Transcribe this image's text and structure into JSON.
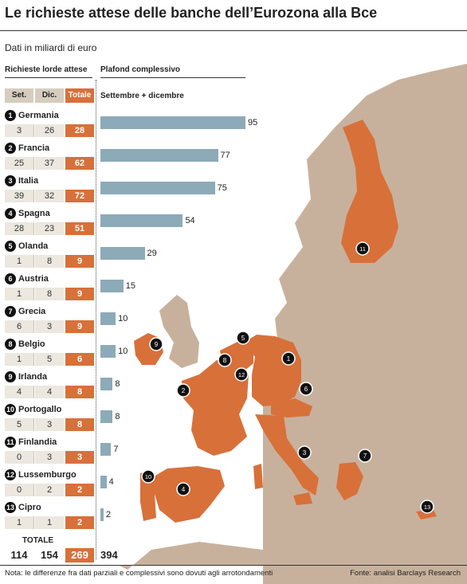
{
  "title": "Le richieste attese delle banche dell’Eurozona alla Bce",
  "subtitle": "Dati in miliardi di euro",
  "headers": {
    "left": "Richieste lorde attese",
    "right": "Plafond complessivo",
    "right_sub": "Settembre + dicembre",
    "col_set": "Set.",
    "col_dic": "Dic.",
    "col_tot": "Totale"
  },
  "colors": {
    "total_fill": "#d8703a",
    "bar_fill": "#8daab8",
    "eurozone": "#d8703a",
    "other_land": "#c8b19c",
    "sea": "#ffffff"
  },
  "chart_data": {
    "type": "bar",
    "title": "Le richieste attese delle banche dell’Eurozona alla Bce",
    "subtitle": "Dati in miliardi di euro",
    "categories": [
      "Germania",
      "Francia",
      "Italia",
      "Spagna",
      "Olanda",
      "Austria",
      "Grecia",
      "Belgio",
      "Irlanda",
      "Portogallo",
      "Finlandia",
      "Lussemburgo",
      "Cipro"
    ],
    "ranks": [
      "1",
      "2",
      "3",
      "4",
      "5",
      "6",
      "7",
      "8",
      "9",
      "10",
      "11",
      "12",
      "13"
    ],
    "series": [
      {
        "name": "Set.",
        "values": [
          3,
          25,
          39,
          28,
          1,
          1,
          6,
          1,
          4,
          5,
          0,
          0,
          1
        ]
      },
      {
        "name": "Dic.",
        "values": [
          26,
          37,
          32,
          23,
          8,
          8,
          3,
          5,
          4,
          3,
          3,
          2,
          1
        ]
      },
      {
        "name": "Totale",
        "values": [
          28,
          62,
          72,
          51,
          9,
          9,
          9,
          6,
          8,
          8,
          3,
          2,
          2
        ]
      },
      {
        "name": "Settembre + dicembre",
        "values": [
          95,
          77,
          75,
          54,
          29,
          15,
          10,
          10,
          8,
          8,
          7,
          4,
          2
        ]
      }
    ],
    "totals": {
      "label": "TOTALE",
      "set": "114",
      "dic": "154",
      "totale": "269",
      "plafond": "394"
    },
    "xlim": [
      0,
      95
    ]
  },
  "map_pins": [
    "1",
    "2",
    "3",
    "4",
    "5",
    "6",
    "7",
    "8",
    "9",
    "10",
    "11",
    "12",
    "13"
  ],
  "footer": {
    "note": "Nota: le differenze fra dati parziali e complessivi sono dovuti agli arrotondamenti",
    "source": "Fonte: analisi Barclays Research"
  }
}
